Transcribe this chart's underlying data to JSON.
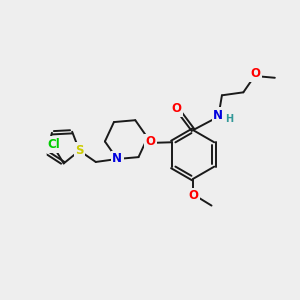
{
  "bg_color": "#eeeeee",
  "bond_color": "#1a1a1a",
  "bond_lw": 1.4,
  "atom_colors": {
    "O": "#ff0000",
    "N": "#0000dd",
    "S": "#cccc00",
    "Cl": "#00cc00",
    "H": "#339999",
    "C": "#1a1a1a"
  },
  "font_size_atom": 8.5,
  "font_size_small": 7.0
}
